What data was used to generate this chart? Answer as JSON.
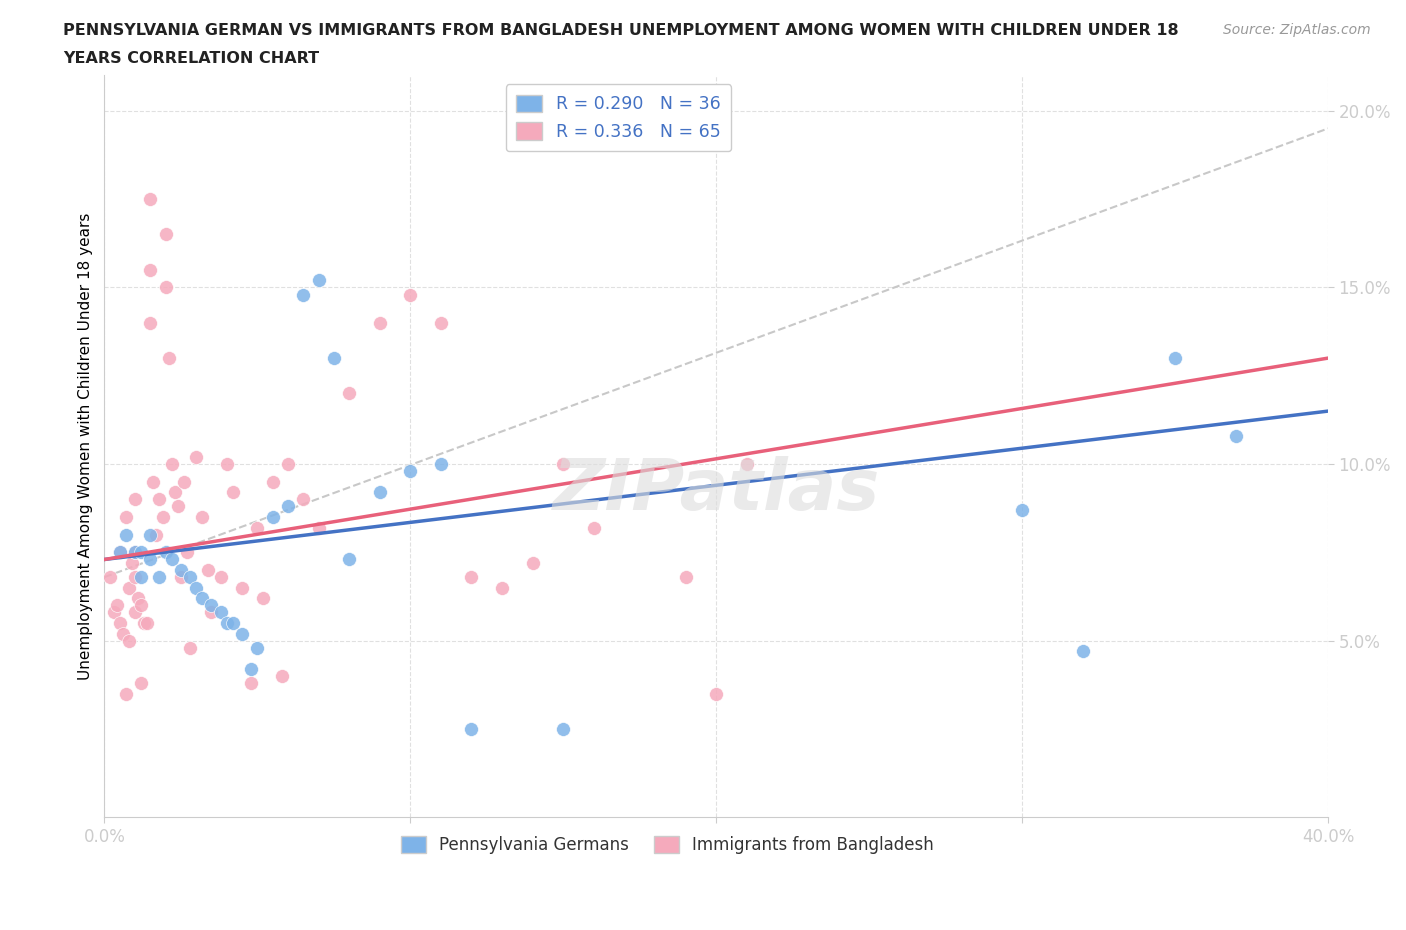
{
  "title_line1": "PENNSYLVANIA GERMAN VS IMMIGRANTS FROM BANGLADESH UNEMPLOYMENT AMONG WOMEN WITH CHILDREN UNDER 18",
  "title_line2": "YEARS CORRELATION CHART",
  "source": "Source: ZipAtlas.com",
  "ylabel": "Unemployment Among Women with Children Under 18 years",
  "xlim": [
    0,
    0.4
  ],
  "ylim": [
    0,
    0.21
  ],
  "xticks": [
    0.0,
    0.1,
    0.2,
    0.3,
    0.4
  ],
  "yticks": [
    0.05,
    0.1,
    0.15,
    0.2
  ],
  "xticklabels": [
    "0.0%",
    "",
    "",
    "",
    "40.0%"
  ],
  "yticklabels": [
    "5.0%",
    "10.0%",
    "15.0%",
    "20.0%"
  ],
  "blue_color": "#7EB3E8",
  "pink_color": "#F5AABC",
  "trend_blue_color": "#4472C4",
  "trend_pink_color": "#E8607A",
  "trend_gray_color": "#C8C8C8",
  "axis_color": "#4472C4",
  "R_blue": 0.29,
  "N_blue": 36,
  "R_pink": 0.336,
  "N_pink": 65,
  "blue_x": [
    0.005,
    0.007,
    0.01,
    0.012,
    0.012,
    0.015,
    0.015,
    0.018,
    0.02,
    0.022,
    0.025,
    0.028,
    0.03,
    0.032,
    0.035,
    0.038,
    0.04,
    0.042,
    0.045,
    0.048,
    0.05,
    0.055,
    0.06,
    0.065,
    0.07,
    0.075,
    0.08,
    0.09,
    0.1,
    0.11,
    0.12,
    0.15,
    0.3,
    0.32,
    0.35,
    0.37
  ],
  "blue_y": [
    0.075,
    0.08,
    0.075,
    0.075,
    0.068,
    0.08,
    0.073,
    0.068,
    0.075,
    0.073,
    0.07,
    0.068,
    0.065,
    0.062,
    0.06,
    0.058,
    0.055,
    0.055,
    0.052,
    0.042,
    0.048,
    0.085,
    0.088,
    0.148,
    0.152,
    0.13,
    0.073,
    0.092,
    0.098,
    0.1,
    0.025,
    0.025,
    0.087,
    0.047,
    0.13,
    0.108
  ],
  "pink_x": [
    0.002,
    0.003,
    0.004,
    0.005,
    0.005,
    0.006,
    0.007,
    0.007,
    0.008,
    0.008,
    0.009,
    0.01,
    0.01,
    0.01,
    0.01,
    0.011,
    0.012,
    0.012,
    0.013,
    0.014,
    0.015,
    0.015,
    0.015,
    0.016,
    0.017,
    0.018,
    0.019,
    0.02,
    0.02,
    0.021,
    0.022,
    0.023,
    0.024,
    0.025,
    0.026,
    0.027,
    0.028,
    0.03,
    0.032,
    0.034,
    0.035,
    0.038,
    0.04,
    0.042,
    0.045,
    0.048,
    0.05,
    0.052,
    0.055,
    0.058,
    0.06,
    0.065,
    0.07,
    0.08,
    0.09,
    0.1,
    0.11,
    0.12,
    0.13,
    0.14,
    0.15,
    0.16,
    0.19,
    0.2,
    0.21
  ],
  "pink_y": [
    0.068,
    0.058,
    0.06,
    0.075,
    0.055,
    0.052,
    0.085,
    0.035,
    0.065,
    0.05,
    0.072,
    0.09,
    0.075,
    0.068,
    0.058,
    0.062,
    0.06,
    0.038,
    0.055,
    0.055,
    0.175,
    0.155,
    0.14,
    0.095,
    0.08,
    0.09,
    0.085,
    0.165,
    0.15,
    0.13,
    0.1,
    0.092,
    0.088,
    0.068,
    0.095,
    0.075,
    0.048,
    0.102,
    0.085,
    0.07,
    0.058,
    0.068,
    0.1,
    0.092,
    0.065,
    0.038,
    0.082,
    0.062,
    0.095,
    0.04,
    0.1,
    0.09,
    0.082,
    0.12,
    0.14,
    0.148,
    0.14,
    0.068,
    0.065,
    0.072,
    0.1,
    0.082,
    0.068,
    0.035,
    0.1
  ],
  "gray_line_x": [
    0.0,
    0.4
  ],
  "gray_line_y": [
    0.068,
    0.195
  ],
  "blue_trend_x": [
    0.0,
    0.4
  ],
  "blue_trend_y": [
    0.073,
    0.115
  ],
  "pink_trend_x": [
    0.0,
    0.4
  ],
  "pink_trend_y": [
    0.073,
    0.13
  ]
}
